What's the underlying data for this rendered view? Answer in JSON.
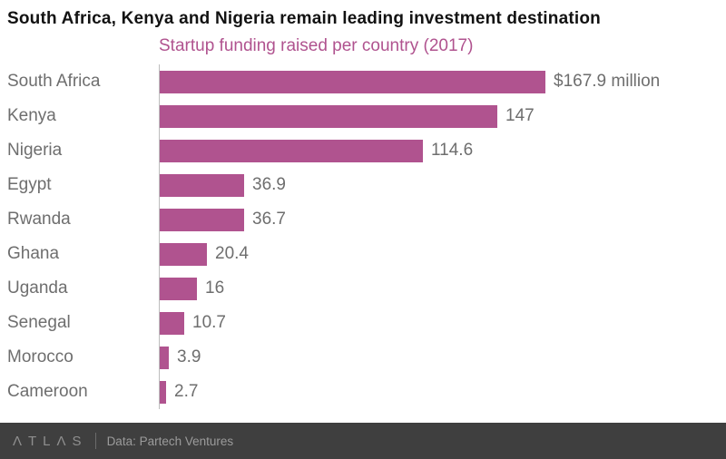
{
  "chart_data": {
    "type": "bar",
    "orientation": "horizontal",
    "title": "South Africa, Kenya and Nigeria remain leading investment destination",
    "subtitle": "Startup funding raised per country (2017)",
    "categories": [
      "South Africa",
      "Kenya",
      "Nigeria",
      "Egypt",
      "Rwanda",
      "Ghana",
      "Uganda",
      "Senegal",
      "Morocco",
      "Cameroon"
    ],
    "values": [
      167.9,
      147,
      114.6,
      36.9,
      36.7,
      20.4,
      16,
      10.7,
      3.9,
      2.7
    ],
    "value_labels": [
      "$167.9 million",
      "147",
      "114.6",
      "36.9",
      "36.7",
      "20.4",
      "16",
      "10.7",
      "3.9",
      "2.7"
    ],
    "value_unit": "million USD",
    "xmax": 167.9,
    "grid": false,
    "legend": false
  },
  "footer": {
    "logo_text": "ΛTLΛS",
    "source": "Data: Partech Ventures"
  },
  "colors": {
    "bar": "#b0538f",
    "subtitle": "#b0538f",
    "axis_line": "#bdbdbd",
    "label": "#6e6e6e",
    "footer_bg": "#3f3f3f",
    "footer_text": "#9b9b9b"
  }
}
